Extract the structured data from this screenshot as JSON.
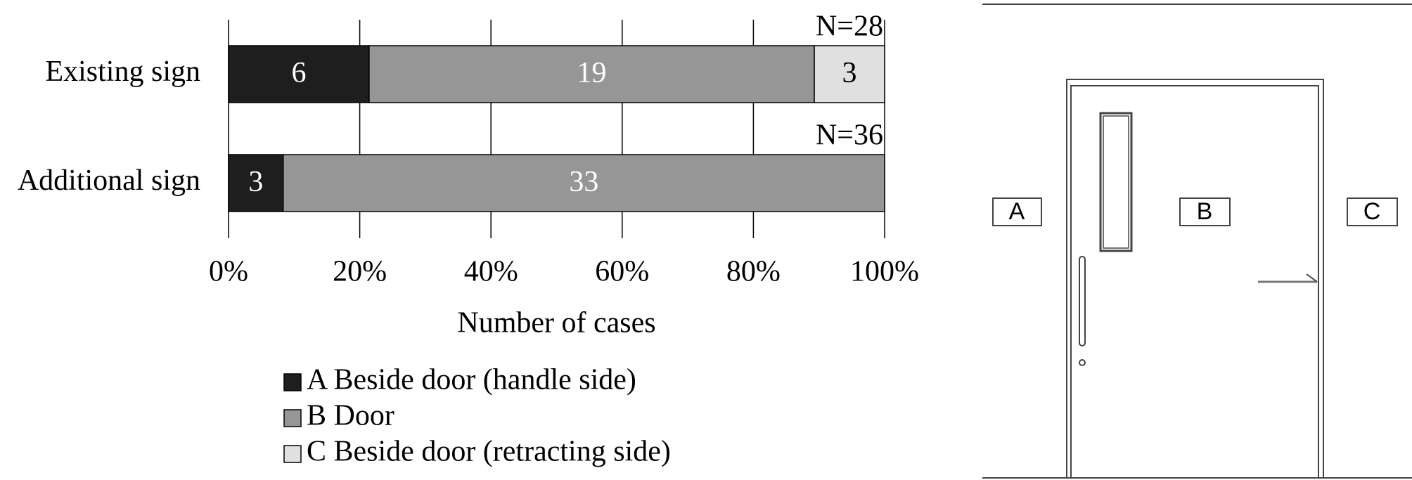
{
  "chart_data": {
    "type": "stacked_bar_percent",
    "orientation": "horizontal",
    "categories": [
      "Existing sign",
      "Additional sign"
    ],
    "annotations": [
      "N=28",
      "N=36"
    ],
    "series": [
      {
        "name": "A Beside door (handle side)",
        "color": "#1e1e1e",
        "label_color": "#ffffff",
        "values": [
          6,
          3
        ]
      },
      {
        "name": "B Door",
        "color": "#969696",
        "label_color": "#ffffff",
        "values": [
          19,
          33
        ]
      },
      {
        "name": "C Beside door (retracting side)",
        "color": "#e0e0e0",
        "label_color": "#000000",
        "values": [
          3,
          null
        ]
      }
    ],
    "xlabel": "Number of cases",
    "xlim": [
      0,
      100
    ],
    "xticks": [
      {
        "value": 0,
        "label": "0%"
      },
      {
        "value": 20,
        "label": "20%"
      },
      {
        "value": 40,
        "label": "40%"
      },
      {
        "value": 60,
        "label": "60%"
      },
      {
        "value": 80,
        "label": "80%"
      },
      {
        "value": 100,
        "label": "100%"
      }
    ],
    "grid": true
  },
  "diagram": {
    "labels": [
      "A",
      "B",
      "C"
    ]
  }
}
